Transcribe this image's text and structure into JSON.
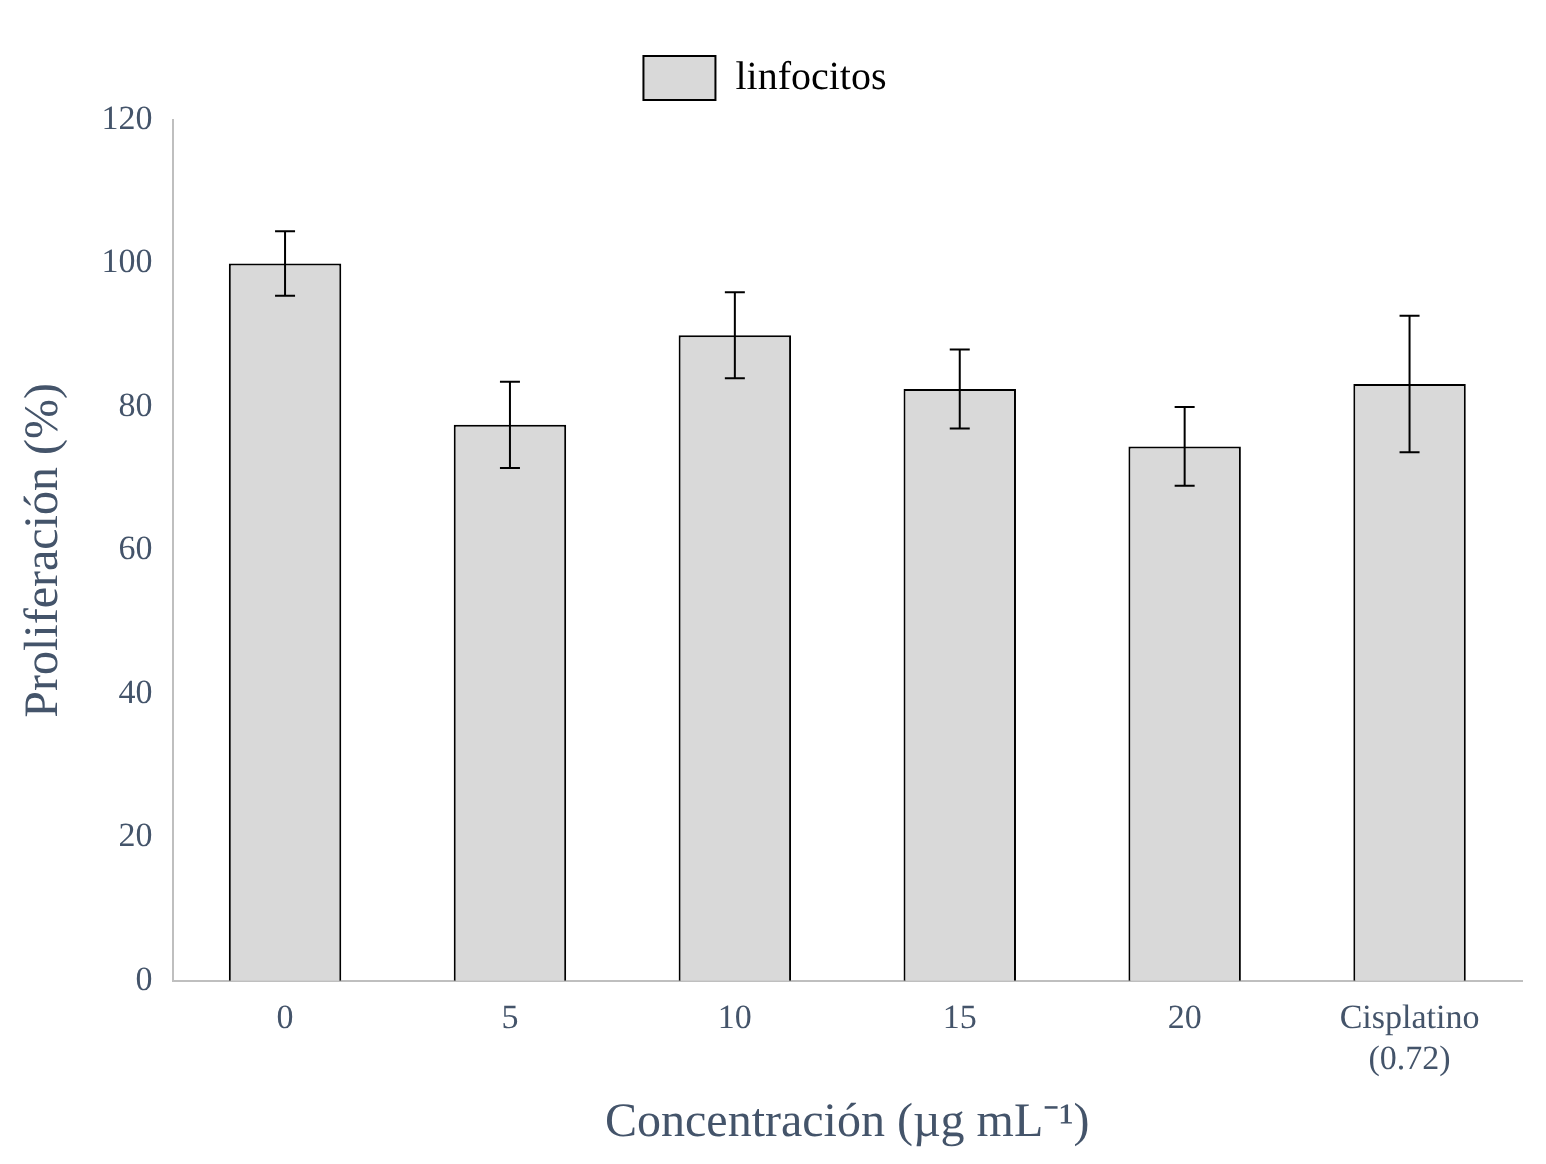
{
  "chart_data": {
    "type": "bar",
    "xlabel": "Concentración (µg mL⁻¹)",
    "ylabel": "Proliferación (%)",
    "categories": [
      "0",
      "5",
      "10",
      "15",
      "20",
      "Cisplatino\n(0.72)"
    ],
    "series": [
      {
        "name": "linfocitos",
        "color": "#d9d9d9",
        "values": [
          100,
          77.5,
          90,
          82.5,
          74.5,
          83.2
        ],
        "errors": [
          4.5,
          6,
          6,
          5.5,
          5.5,
          9.5
        ]
      }
    ],
    "ylim": [
      0,
      120
    ],
    "yticks": [
      0,
      20,
      40,
      60,
      80,
      100,
      120
    ],
    "grid": false,
    "legend": "top"
  }
}
